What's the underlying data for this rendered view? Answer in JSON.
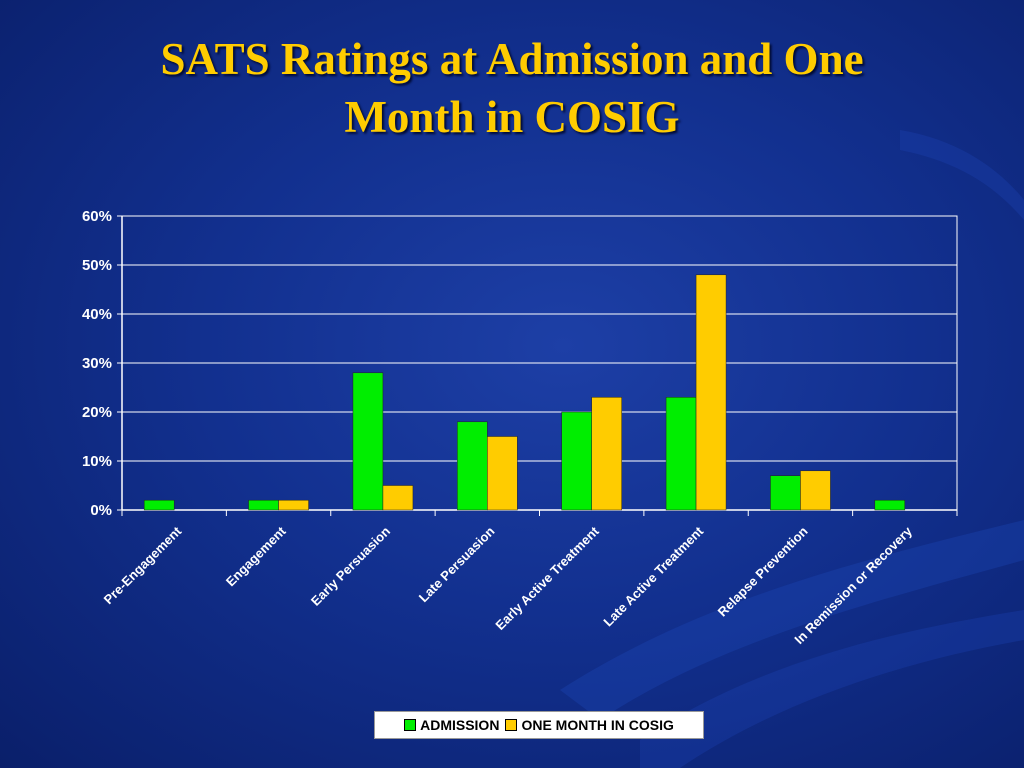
{
  "slide": {
    "title_line1": "SATS Ratings at Admission and One",
    "title_line2": "Month in COSIG"
  },
  "colors": {
    "title": "#ffcc00",
    "admission": "#00ee00",
    "one_month": "#ffcc00",
    "background": "#12308f"
  },
  "chart_data": {
    "type": "bar",
    "categories": [
      "Pre-Engagement",
      "Engagement",
      "Early Persuasion",
      "Late Persuasion",
      "Early Active Treatment",
      "Late Active Treatment",
      "Relapse Prevention",
      "In Remission or Recovery"
    ],
    "series": [
      {
        "name": "ADMISSION",
        "values": [
          2,
          2,
          28,
          18,
          20,
          23,
          7,
          2
        ]
      },
      {
        "name": "ONE MONTH IN COSIG",
        "values": [
          0,
          2,
          5,
          15,
          23,
          48,
          8,
          0
        ]
      }
    ],
    "ylim": [
      0,
      60
    ],
    "yticks": [
      "0%",
      "10%",
      "20%",
      "30%",
      "40%",
      "50%",
      "60%"
    ],
    "grid": true,
    "legend": "bottom"
  }
}
